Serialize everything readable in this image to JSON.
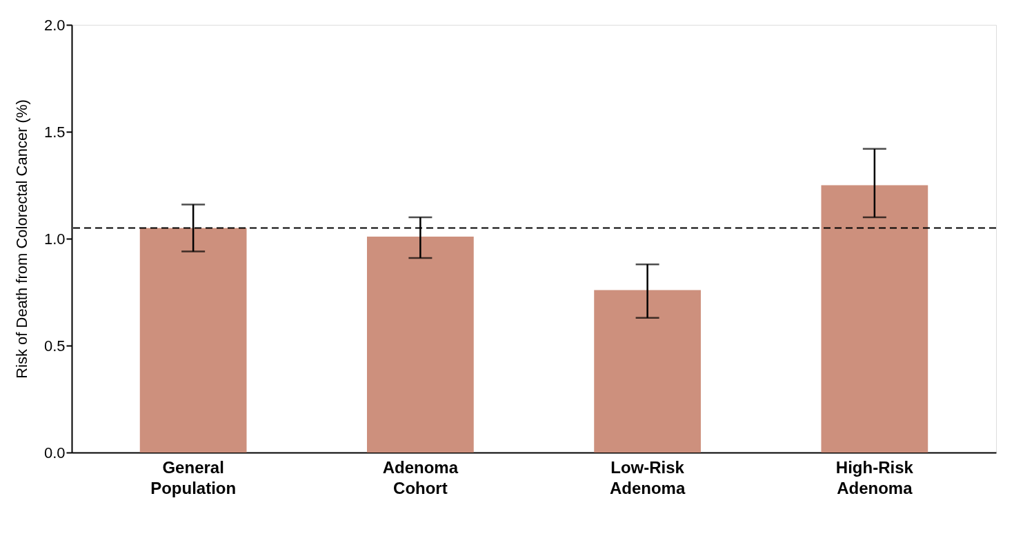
{
  "chart_data": {
    "type": "bar",
    "ylabel": "Risk of Death from Colorectal Cancer (%)",
    "categories": [
      "General Population",
      "Adenoma Cohort",
      "Low-Risk Adenoma",
      "High-Risk Adenoma"
    ],
    "values": [
      1.05,
      1.01,
      0.76,
      1.25
    ],
    "errors": [
      [
        0.94,
        1.16
      ],
      [
        0.91,
        1.1
      ],
      [
        0.63,
        0.88
      ],
      [
        1.1,
        1.42
      ]
    ],
    "color": "#cd907d",
    "ylim": [
      0,
      2.0
    ],
    "yticks": [
      {
        "value": 0,
        "label": "0.0"
      },
      {
        "value": 0.5,
        "label": "0.5"
      },
      {
        "value": 1.0,
        "label": "1.0"
      },
      {
        "value": 1.5,
        "label": "1.5"
      },
      {
        "value": 2.0,
        "label": "2.0"
      }
    ],
    "ref_lines": [
      {
        "axis": "y",
        "value": 1.05,
        "label": null,
        "color": "#000000",
        "line_style": "dashed"
      }
    ],
    "grid": false
  }
}
